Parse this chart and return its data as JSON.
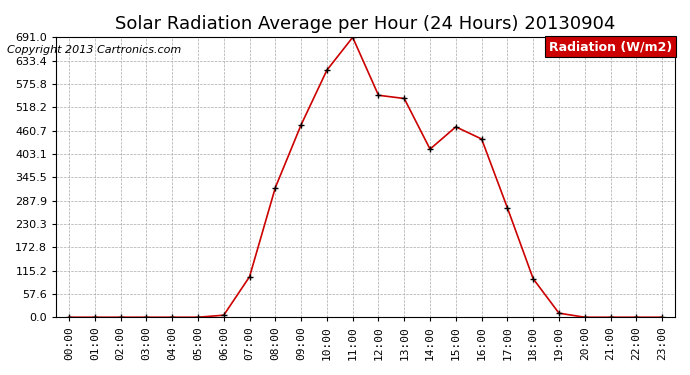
{
  "title": "Solar Radiation Average per Hour (24 Hours) 20130904",
  "copyright": "Copyright 2013 Cartronics.com",
  "legend_label": "Radiation (W/m2)",
  "hours": [
    "00:00",
    "01:00",
    "02:00",
    "03:00",
    "04:00",
    "05:00",
    "06:00",
    "07:00",
    "08:00",
    "09:00",
    "10:00",
    "11:00",
    "12:00",
    "13:00",
    "14:00",
    "15:00",
    "16:00",
    "17:00",
    "18:00",
    "19:00",
    "20:00",
    "21:00",
    "22:00",
    "23:00"
  ],
  "values": [
    0.0,
    0.0,
    0.0,
    0.0,
    0.0,
    0.0,
    5.0,
    100.0,
    320.0,
    475.0,
    610.0,
    691.0,
    548.0,
    540.0,
    415.0,
    470.0,
    440.0,
    270.0,
    95.0,
    10.0,
    0.0,
    0.0,
    0.0,
    0.0
  ],
  "ymin": 0.0,
  "ymax": 691.0,
  "yticks": [
    0.0,
    57.6,
    115.2,
    172.8,
    230.3,
    287.9,
    345.5,
    403.1,
    460.7,
    518.2,
    575.8,
    633.4,
    691.0
  ],
  "line_color": "#cc0000",
  "marker_color": "#000000",
  "bg_color": "#ffffff",
  "grid_color": "#aaaaaa",
  "legend_bg": "#cc0000",
  "legend_text_color": "#ffffff",
  "title_fontsize": 13,
  "copyright_fontsize": 8,
  "tick_fontsize": 8,
  "legend_fontsize": 9
}
